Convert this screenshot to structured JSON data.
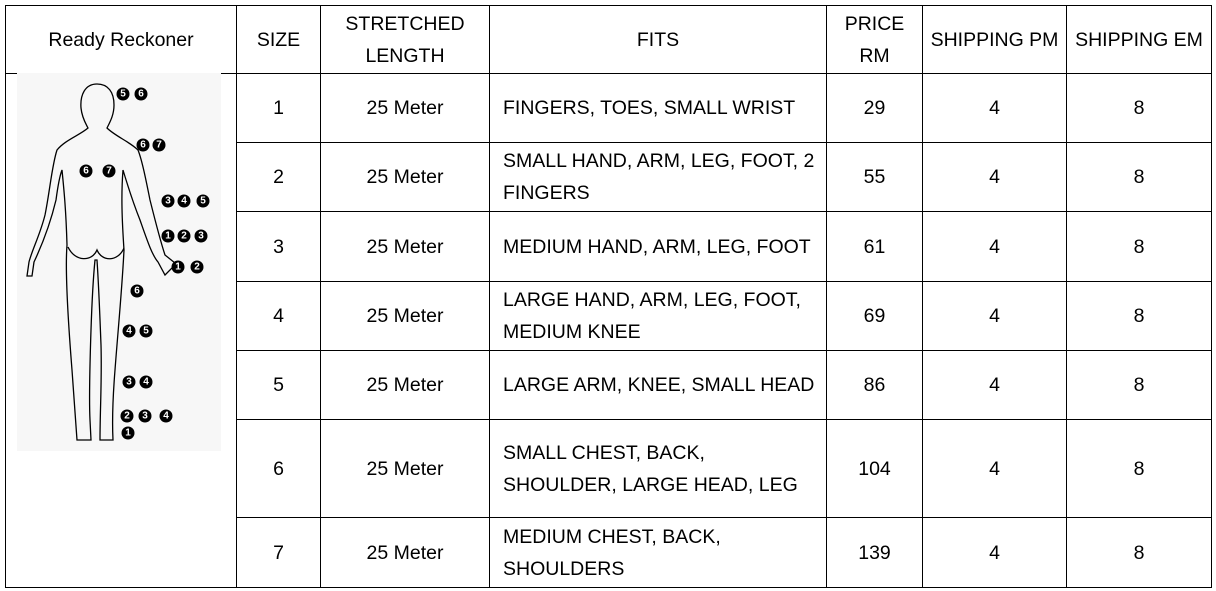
{
  "headers": [
    "Ready Reckoner",
    "SIZE",
    "STRETCHED LENGTH",
    "FITS",
    "PRICE RM",
    "SHIPPING PM",
    "SHIPPING EM"
  ],
  "rows": [
    {
      "size": "1",
      "length": "25 Meter",
      "fits": "FINGERS, TOES, SMALL WRIST",
      "price": "29",
      "pm": "4",
      "em": "8"
    },
    {
      "size": "2",
      "length": "25 Meter",
      "fits": "SMALL HAND, ARM, LEG, FOOT, 2 FINGERS",
      "price": "55",
      "pm": "4",
      "em": "8"
    },
    {
      "size": "3",
      "length": "25 Meter",
      "fits": "MEDIUM HAND, ARM, LEG, FOOT",
      "price": "61",
      "pm": "4",
      "em": "8"
    },
    {
      "size": "4",
      "length": "25 Meter",
      "fits": "LARGE HAND, ARM, LEG, FOOT, MEDIUM KNEE",
      "price": "69",
      "pm": "4",
      "em": "8"
    },
    {
      "size": "5",
      "length": "25 Meter",
      "fits": "LARGE ARM, KNEE, SMALL HEAD",
      "price": "86",
      "pm": "4",
      "em": "8"
    },
    {
      "size": "6",
      "length": "25 Meter",
      "fits": "SMALL CHEST, BACK, SHOULDER, LARGE HEAD, LEG",
      "price": "104",
      "pm": "4",
      "em": "8"
    },
    {
      "size": "7",
      "length": "25 Meter",
      "fits": "MEDIUM CHEST, BACK, SHOULDERS",
      "price": "139",
      "pm": "4",
      "em": "8"
    }
  ],
  "figure_markers": {
    "head": [
      "5",
      "6"
    ],
    "shoulder": [
      "6",
      "7"
    ],
    "chest": [
      "6",
      "7"
    ],
    "upper_arm": [
      "3",
      "4",
      "5"
    ],
    "forearm": [
      "1",
      "2",
      "3"
    ],
    "hand": [
      "1",
      "2"
    ],
    "thigh": [
      "6"
    ],
    "knee": [
      "4",
      "5"
    ],
    "calf": [
      "3",
      "4"
    ],
    "ankle": [
      "2",
      "3",
      "4"
    ],
    "toe": [
      "1"
    ]
  }
}
